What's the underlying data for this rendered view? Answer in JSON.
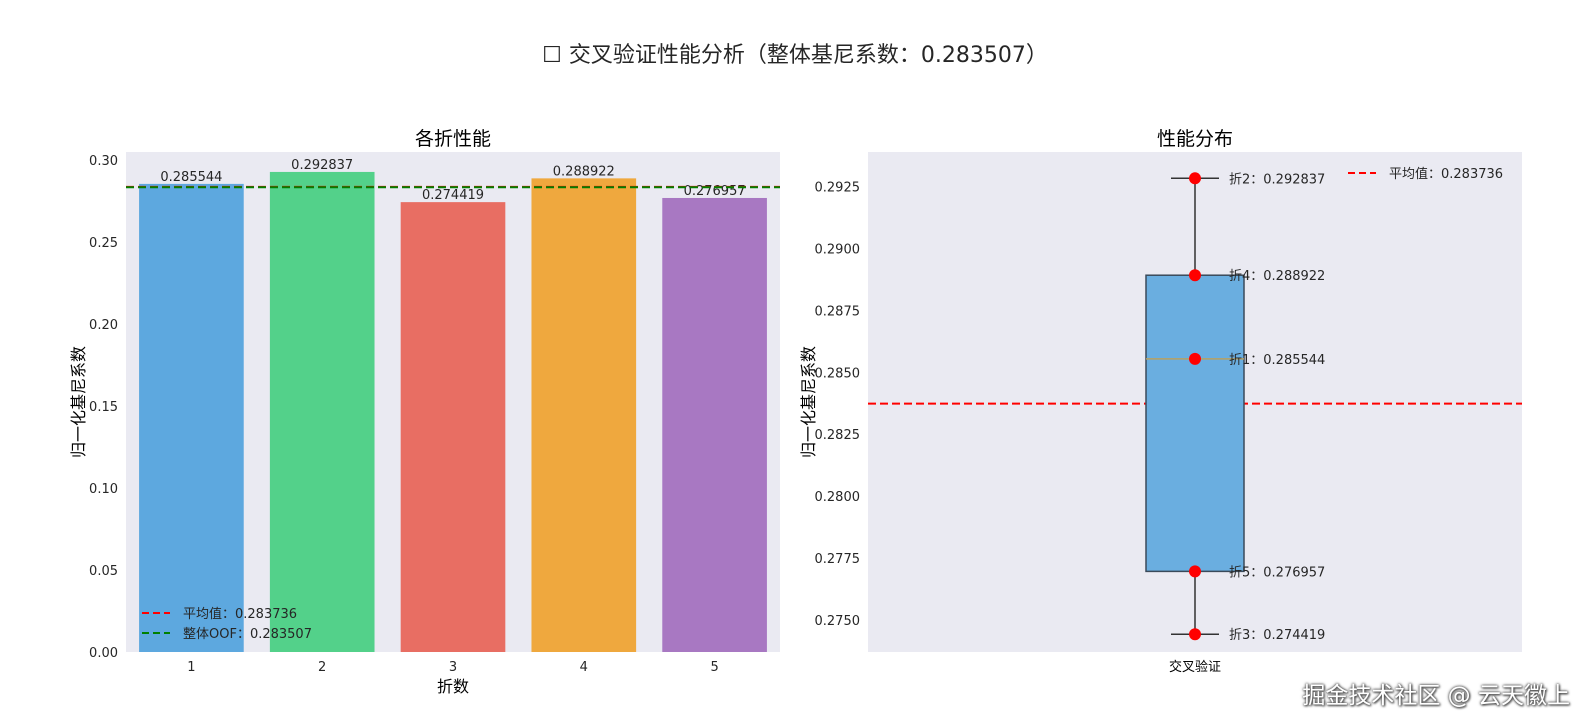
{
  "figure": {
    "title": "☐ 交叉验证性能分析（整体基尼系数：0.283507）"
  },
  "chart_data": [
    {
      "type": "bar",
      "title": "各折性能",
      "xlabel": "折数",
      "ylabel": "归一化基尼系数",
      "categories": [
        "1",
        "2",
        "3",
        "4",
        "5"
      ],
      "values": [
        0.285544,
        0.292837,
        0.274419,
        0.288922,
        0.276957
      ],
      "value_labels": [
        "0.285544",
        "0.292837",
        "0.274419",
        "0.288922",
        "0.276957"
      ],
      "colors": [
        "#5DA8DF",
        "#53D18A",
        "#E86E63",
        "#EFA83E",
        "#A878C2"
      ],
      "ylim": [
        0,
        0.305
      ],
      "yticks": [
        0.0,
        0.05,
        0.1,
        0.15,
        0.2,
        0.25,
        0.3
      ],
      "ytick_labels": [
        "0.00",
        "0.05",
        "0.10",
        "0.15",
        "0.20",
        "0.25",
        "0.30"
      ],
      "hlines": [
        {
          "label": "平均值：0.283736",
          "value": 0.283736,
          "color": "#FF0000"
        },
        {
          "label": "整体OOF：0.283507",
          "value": 0.283507,
          "color": "#008000"
        }
      ],
      "legend_position": "lower-left",
      "grid": false
    },
    {
      "type": "box",
      "title": "性能分布",
      "xlabel": "",
      "ylabel": "归一化基尼系数",
      "category": "交叉验证",
      "box": {
        "q1": 0.276957,
        "median": 0.285544,
        "q3": 0.288922,
        "whisker_low": 0.274419,
        "whisker_high": 0.292837,
        "color": "#6AAEE0"
      },
      "points": [
        {
          "label": "折1：0.285544",
          "value": 0.285544
        },
        {
          "label": "折2：0.292837",
          "value": 0.292837
        },
        {
          "label": "折3：0.274419",
          "value": 0.274419
        },
        {
          "label": "折4：0.288922",
          "value": 0.288922
        },
        {
          "label": "折5：0.276957",
          "value": 0.276957
        }
      ],
      "point_color": "#FF0000",
      "hline": {
        "label": "平均值：0.283736",
        "value": 0.283736,
        "color": "#FF0000"
      },
      "ylim": [
        0.2737,
        0.2939
      ],
      "yticks": [
        0.275,
        0.2775,
        0.28,
        0.2825,
        0.285,
        0.2875,
        0.29,
        0.2925
      ],
      "ytick_labels": [
        "0.2750",
        "0.2775",
        "0.2800",
        "0.2825",
        "0.2850",
        "0.2875",
        "0.2900",
        "0.2925"
      ],
      "legend_position": "top-right",
      "grid": false
    }
  ],
  "watermark": "掘金技术社区 @ 云天徽上"
}
